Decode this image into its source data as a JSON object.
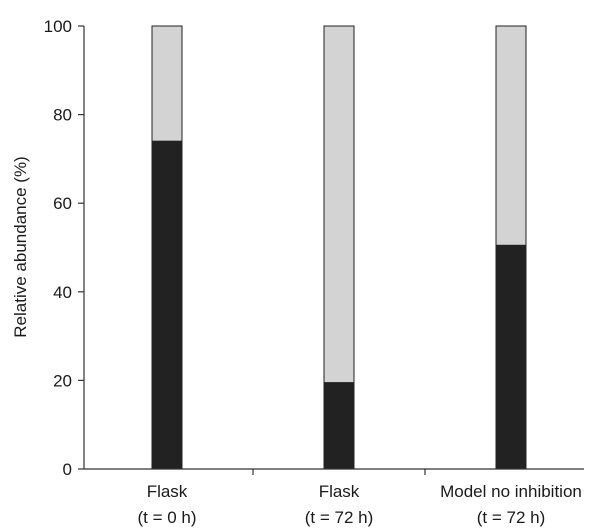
{
  "chart_data": {
    "type": "bar",
    "stacked": true,
    "categories": [
      [
        "Flask",
        "(t = 0 h)"
      ],
      [
        "Flask",
        "(t = 72 h)"
      ],
      [
        "Model no inhibition",
        "(t = 72 h)"
      ]
    ],
    "series": [
      {
        "values": [
          74,
          19.5,
          50.5
        ],
        "color": "#222222"
      },
      {
        "values": [
          26,
          80.5,
          49.5
        ],
        "color": "#d3d3d3"
      }
    ],
    "ylabel": "Relative abundance (%)",
    "xlabel": "",
    "ylim": [
      0,
      100
    ],
    "yticks": [
      0,
      20,
      40,
      60,
      80,
      100
    ],
    "grid": false,
    "legend": "none"
  }
}
